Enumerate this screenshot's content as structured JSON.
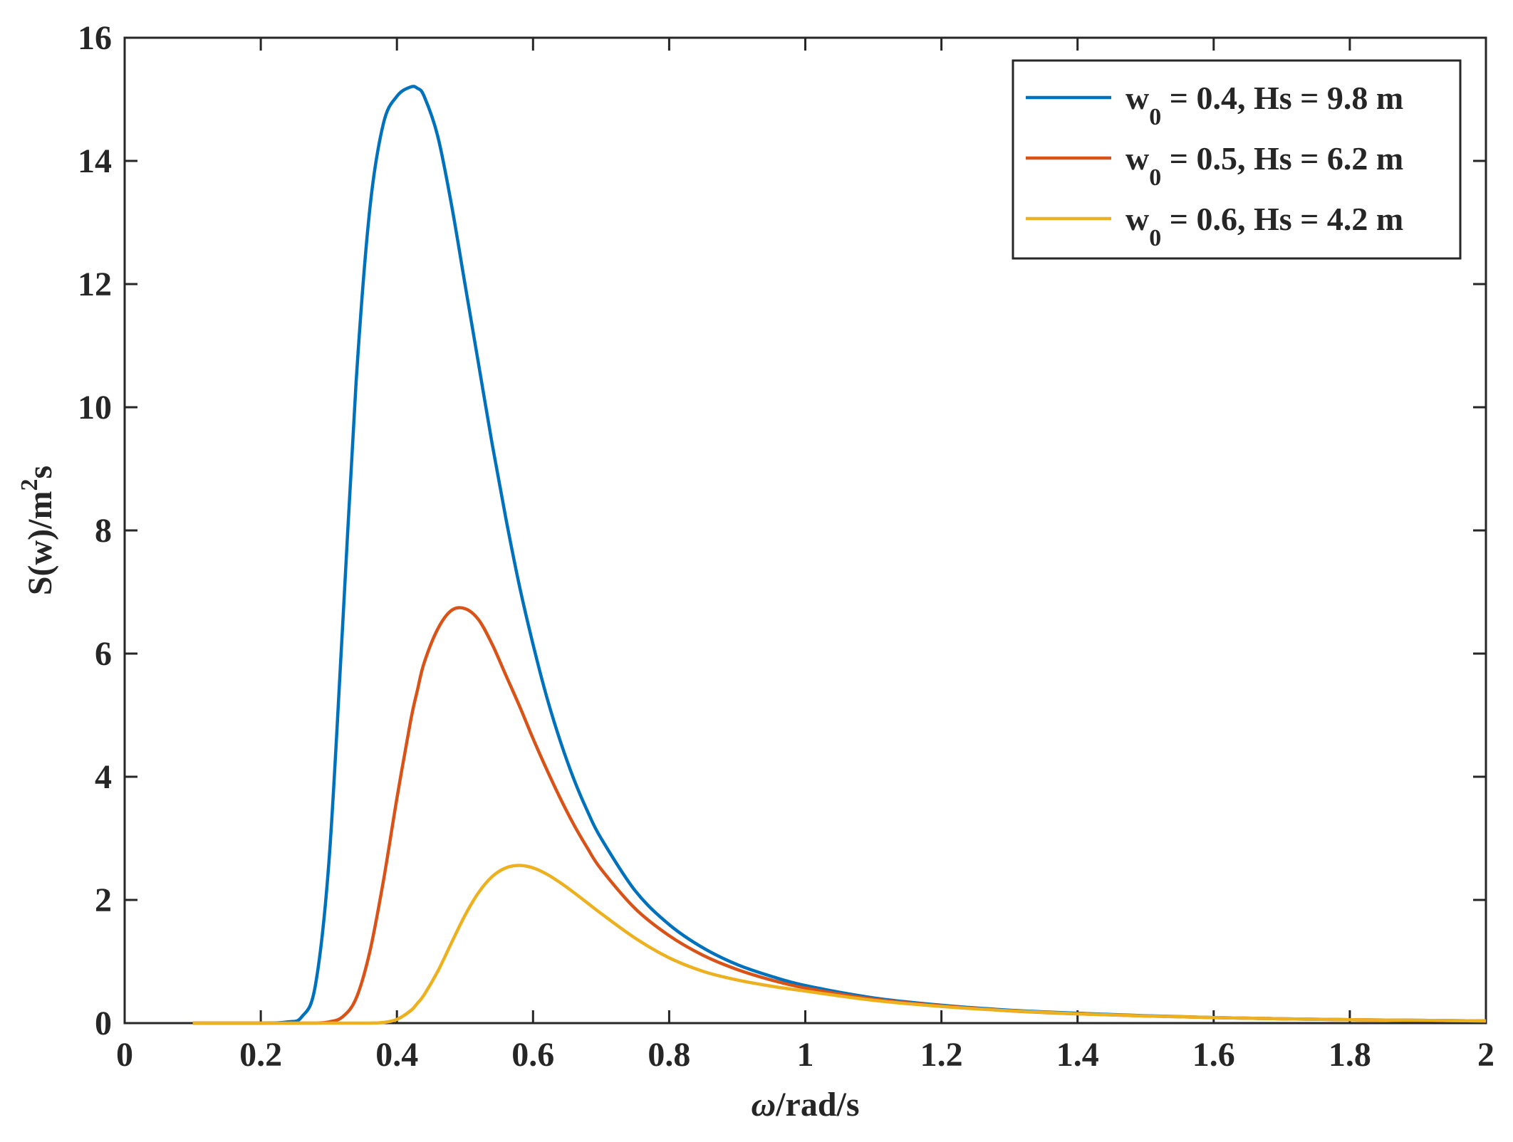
{
  "chart_data": {
    "type": "line",
    "xlabel": "ω/rad/s",
    "ylabel": "S(w)/m^2s",
    "xlim": [
      0,
      2
    ],
    "ylim": [
      0,
      16
    ],
    "x_ticks": [
      "0",
      "0.2",
      "0.4",
      "0.6",
      "0.8",
      "1",
      "1.2",
      "1.4",
      "1.6",
      "1.8",
      "2"
    ],
    "y_ticks": [
      "0",
      "2",
      "4",
      "6",
      "8",
      "10",
      "12",
      "14",
      "16"
    ],
    "grid": false,
    "legend_position": "top-right",
    "x": [
      0.1,
      0.2,
      0.24,
      0.26,
      0.28,
      0.3,
      0.32,
      0.34,
      0.36,
      0.38,
      0.4,
      0.42,
      0.43,
      0.44,
      0.46,
      0.48,
      0.5,
      0.52,
      0.54,
      0.56,
      0.58,
      0.6,
      0.62,
      0.64,
      0.66,
      0.68,
      0.7,
      0.75,
      0.8,
      0.85,
      0.9,
      0.95,
      1.0,
      1.1,
      1.2,
      1.3,
      1.4,
      1.5,
      1.6,
      1.7,
      1.8,
      1.9,
      2.0
    ],
    "series": [
      {
        "name": "w_0 = 0.4, Hs = 9.8 m",
        "color": "#0072BD",
        "values": [
          0,
          0,
          0.02,
          0.1,
          0.6,
          2.6,
          6.4,
          10.4,
          13.2,
          14.6,
          15.05,
          15.2,
          15.18,
          15.05,
          14.4,
          13.3,
          12.0,
          10.7,
          9.4,
          8.2,
          7.1,
          6.15,
          5.3,
          4.58,
          3.96,
          3.44,
          3.0,
          2.15,
          1.6,
          1.22,
          0.95,
          0.76,
          0.61,
          0.41,
          0.29,
          0.21,
          0.16,
          0.12,
          0.09,
          0.07,
          0.055,
          0.045,
          0.035
        ]
      },
      {
        "name": "w_0 = 0.5, Hs = 6.2 m",
        "color": "#D95319",
        "values": [
          0,
          0,
          0,
          0,
          0,
          0.02,
          0.1,
          0.4,
          1.15,
          2.3,
          3.65,
          4.9,
          5.4,
          5.85,
          6.4,
          6.7,
          6.73,
          6.55,
          6.15,
          5.65,
          5.15,
          4.62,
          4.12,
          3.65,
          3.22,
          2.84,
          2.5,
          1.86,
          1.42,
          1.1,
          0.87,
          0.7,
          0.57,
          0.39,
          0.28,
          0.2,
          0.15,
          0.115,
          0.09,
          0.07,
          0.055,
          0.045,
          0.035
        ]
      },
      {
        "name": "w_0 = 0.6, Hs = 4.2 m",
        "color": "#EDB120",
        "values": [
          0,
          0,
          0,
          0,
          0,
          0,
          0,
          0,
          0,
          0.01,
          0.06,
          0.2,
          0.32,
          0.46,
          0.84,
          1.3,
          1.75,
          2.12,
          2.38,
          2.52,
          2.56,
          2.52,
          2.42,
          2.28,
          2.12,
          1.95,
          1.78,
          1.38,
          1.06,
          0.84,
          0.7,
          0.6,
          0.52,
          0.37,
          0.27,
          0.2,
          0.15,
          0.115,
          0.09,
          0.07,
          0.055,
          0.045,
          0.035
        ]
      }
    ]
  },
  "legend": {
    "items": [
      {
        "prefix": "w",
        "sub": "0",
        "rest": " = 0.4, Hs = 9.8 m"
      },
      {
        "prefix": "w",
        "sub": "0",
        "rest": " = 0.5, Hs = 6.2 m"
      },
      {
        "prefix": "w",
        "sub": "0",
        "rest": " = 0.6, Hs = 4.2 m"
      }
    ]
  },
  "axis_titles": {
    "x_symbol": "ω",
    "x_rest": "/rad/s",
    "y_base": "S(w)/m",
    "y_sup": "2",
    "y_tail": "s"
  }
}
